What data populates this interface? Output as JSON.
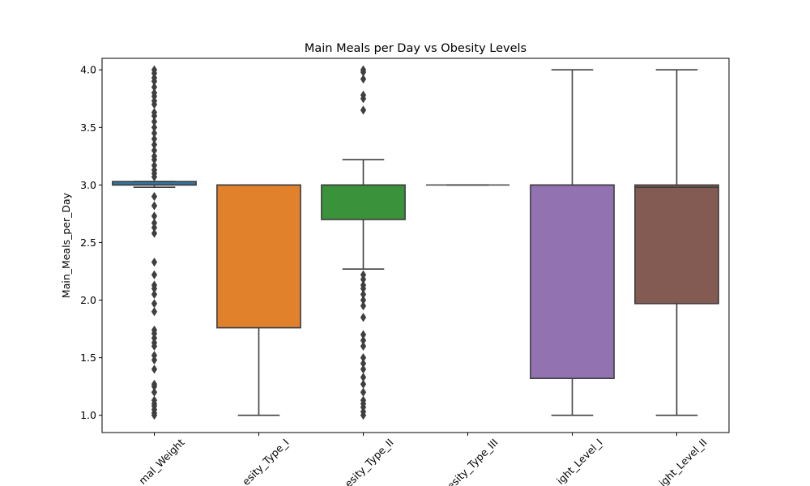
{
  "chart_data": {
    "type": "box",
    "title": "Main Meals per Day vs Obesity Levels",
    "xlabel": "",
    "ylabel": "Main_Meals_per_Day",
    "ylim": [
      0.85,
      4.1
    ],
    "yticks": [
      "1.0",
      "1.5",
      "2.0",
      "2.5",
      "3.0",
      "3.5",
      "4.0"
    ],
    "ytick_values": [
      1.0,
      1.5,
      2.0,
      2.5,
      3.0,
      3.5,
      4.0
    ],
    "categories": [
      "Normal_Weight",
      "Obesity_Type_I",
      "Obesity_Type_II",
      "Obesity_Type_III",
      "Overweight_Level_I",
      "Overweight_Level_II"
    ],
    "category_labels_visible": [
      "mal_Weight",
      "esity_Type_I",
      "esity_Type_II",
      "esity_Type_III",
      "ight_Level_I",
      "ight_Level_II"
    ],
    "series": [
      {
        "category": "Normal_Weight",
        "color": "#3274a1",
        "whisker_low": 2.98,
        "q1": 3.0,
        "median": 3.0,
        "q3": 3.03,
        "whisker_high": 3.03,
        "outliers": [
          1.0,
          1.02,
          1.05,
          1.08,
          1.1,
          1.13,
          1.2,
          1.25,
          1.27,
          1.4,
          1.48,
          1.52,
          1.6,
          1.63,
          1.67,
          1.71,
          1.74,
          1.9,
          1.97,
          2.05,
          2.1,
          2.13,
          2.22,
          2.33,
          2.58,
          2.63,
          2.67,
          2.73,
          2.82,
          2.9,
          3.07,
          3.1,
          3.13,
          3.17,
          3.22,
          3.25,
          3.3,
          3.35,
          3.4,
          3.45,
          3.5,
          3.55,
          3.6,
          3.63,
          3.7,
          3.73,
          3.77,
          3.8,
          3.85,
          3.9,
          3.93,
          3.97,
          4.0
        ]
      },
      {
        "category": "Obesity_Type_I",
        "color": "#e1812c",
        "whisker_low": 1.0,
        "q1": 1.76,
        "median": 3.0,
        "q3": 3.0,
        "whisker_high": 3.0,
        "outliers": []
      },
      {
        "category": "Obesity_Type_II",
        "color": "#3a923a",
        "whisker_low": 2.27,
        "q1": 2.7,
        "median": 3.0,
        "q3": 3.0,
        "whisker_high": 3.22,
        "outliers": [
          1.0,
          1.03,
          1.07,
          1.1,
          1.13,
          1.2,
          1.27,
          1.33,
          1.4,
          1.45,
          1.5,
          1.6,
          1.65,
          1.7,
          1.85,
          1.95,
          2.0,
          2.05,
          2.1,
          2.13,
          2.18,
          2.22,
          3.65,
          3.75,
          3.78,
          3.92,
          3.98,
          4.0
        ]
      },
      {
        "category": "Obesity_Type_III",
        "color": "#c03d3e",
        "whisker_low": 3.0,
        "q1": 3.0,
        "median": 3.0,
        "q3": 3.0,
        "whisker_high": 3.0,
        "outliers": []
      },
      {
        "category": "Overweight_Level_I",
        "color": "#9372b2",
        "whisker_low": 1.0,
        "q1": 1.32,
        "median": 3.0,
        "q3": 3.0,
        "whisker_high": 4.0,
        "outliers": []
      },
      {
        "category": "Overweight_Level_II",
        "color": "#845b53",
        "whisker_low": 1.0,
        "q1": 1.97,
        "median": 2.98,
        "q3": 3.0,
        "whisker_high": 4.0,
        "outliers": []
      }
    ],
    "grid": false,
    "legend": "none"
  }
}
